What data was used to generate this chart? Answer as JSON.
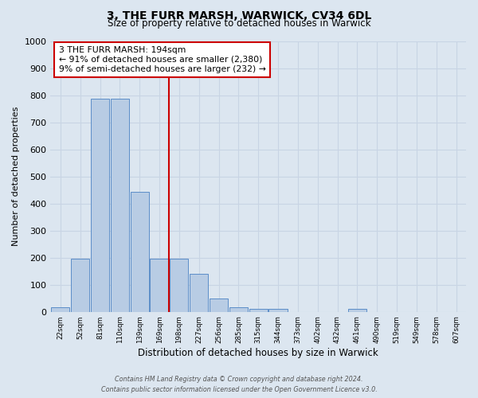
{
  "title": "3, THE FURR MARSH, WARWICK, CV34 6DL",
  "subtitle": "Size of property relative to detached houses in Warwick",
  "xlabel": "Distribution of detached houses by size in Warwick",
  "ylabel": "Number of detached properties",
  "bin_labels": [
    "22sqm",
    "52sqm",
    "81sqm",
    "110sqm",
    "139sqm",
    "169sqm",
    "198sqm",
    "227sqm",
    "256sqm",
    "285sqm",
    "315sqm",
    "344sqm",
    "373sqm",
    "402sqm",
    "432sqm",
    "461sqm",
    "490sqm",
    "519sqm",
    "549sqm",
    "578sqm",
    "607sqm"
  ],
  "bar_values": [
    18,
    196,
    787,
    787,
    443,
    197,
    197,
    140,
    48,
    18,
    10,
    10,
    0,
    0,
    0,
    10,
    0,
    0,
    0,
    0,
    0
  ],
  "bar_color": "#b8cce4",
  "bar_edge_color": "#5b8dc8",
  "vline_x_index": 6,
  "vline_color": "#cc0000",
  "annotation_text": "3 THE FURR MARSH: 194sqm\n← 91% of detached houses are smaller (2,380)\n9% of semi-detached houses are larger (232) →",
  "annotation_box_color": "#cc0000",
  "ylim": [
    0,
    1000
  ],
  "yticks": [
    0,
    100,
    200,
    300,
    400,
    500,
    600,
    700,
    800,
    900,
    1000
  ],
  "grid_color": "#c8d4e4",
  "bg_color": "#dce6f0",
  "footer_line1": "Contains HM Land Registry data © Crown copyright and database right 2024.",
  "footer_line2": "Contains public sector information licensed under the Open Government Licence v3.0."
}
